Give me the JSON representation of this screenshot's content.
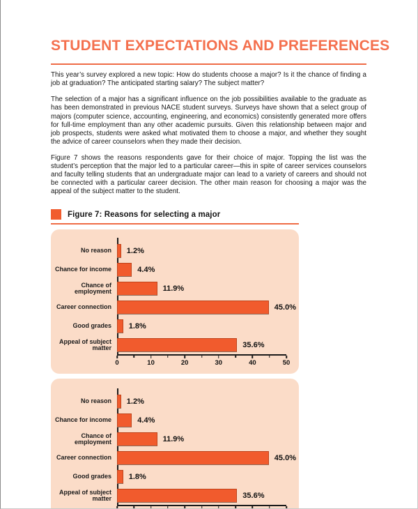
{
  "page": {
    "title": "STUDENT EXPECTATIONS AND PREFERENCES",
    "paragraphs": [
      "This year’s survey explored a new topic: How do students choose a major? Is it the chance of finding a job at graduation? The anticipated starting salary? The subject matter?",
      "The selection of a major has a significant influence on the job possibilities available to the graduate as has been demonstrated in previous NACE student surveys. Surveys have shown that a select group of majors (computer science, accounting, engineering, and economics) consistently generated more offers for full-time employment than any other academic pursuits. Given this relationship between major and job prospects, students were asked what motivated them to choose a major, and whether they sought the advice of career counselors when they made their decision.",
      "Figure 7 shows the reasons respondents gave for their choice of major. Topping the list was the student’s perception that the major led to a particular career—this in spite of career services counselors and faculty telling students that an undergraduate major can lead to a variety of careers and should not be connected with a particular career decision. The other main reason for choosing a major was the appeal of the subject matter to the student."
    ],
    "figure_caption": "Figure 7: Reasons for selecting a major"
  },
  "colors": {
    "accent_bar": "#f15b2d",
    "accent_bar_border": "#bf431a",
    "title_orange": "#f4704e",
    "rule_orange": "#ef6b45",
    "panel_background": "#fbdcc8"
  },
  "chart_data": [
    {
      "type": "bar",
      "orientation": "horizontal",
      "title": "Reasons for selecting a major",
      "categories": [
        "No reason",
        "Chance for income",
        "Chance of employment",
        "Career connection",
        "Good grades",
        "Appeal of subject matter"
      ],
      "values": [
        1.2,
        4.4,
        11.9,
        45.0,
        1.8,
        35.6
      ],
      "value_labels": [
        "1.2%",
        "4.4%",
        "11.9%",
        "45.0%",
        "1.8%",
        "35.6%"
      ],
      "xlabel": "",
      "ylabel": "",
      "xlim": [
        0,
        50
      ],
      "x_ticks": [
        0,
        10,
        20,
        30,
        40,
        50
      ],
      "x_minor_ticks": [
        5,
        15,
        25,
        35,
        45
      ],
      "grid": false,
      "legend": "none"
    },
    {
      "type": "bar",
      "orientation": "horizontal",
      "title": "Reasons for selecting a major (repeated)",
      "categories": [
        "No reason",
        "Chance for income",
        "Chance of employment",
        "Career connection",
        "Good grades",
        "Appeal of subject matter"
      ],
      "values": [
        1.2,
        4.4,
        11.9,
        45.0,
        1.8,
        35.6
      ],
      "value_labels": [
        "1.2%",
        "4.4%",
        "11.9%",
        "45.0%",
        "1.8%",
        "35.6%"
      ],
      "xlabel": "",
      "ylabel": "",
      "xlim": [
        0,
        50
      ],
      "x_ticks": [
        0,
        10,
        20,
        30,
        40,
        50
      ],
      "x_minor_ticks": [
        5,
        15,
        25,
        35,
        45
      ],
      "grid": false,
      "legend": "none"
    }
  ]
}
